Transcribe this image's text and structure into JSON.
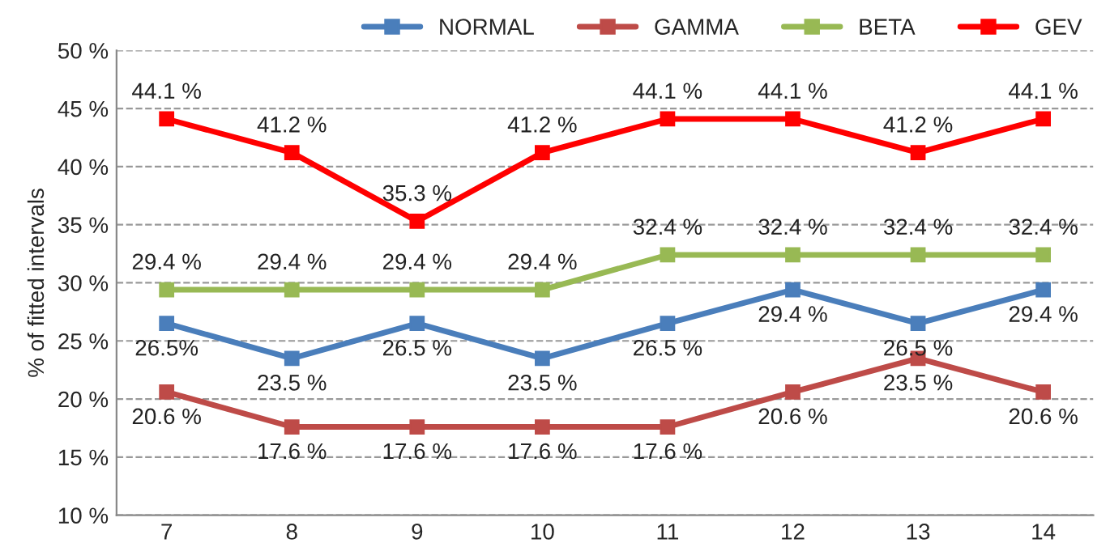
{
  "chart_data": {
    "type": "line",
    "ylabel": "% of fitted intervals",
    "categories": [
      "7",
      "8",
      "9",
      "10",
      "11",
      "12",
      "13",
      "14"
    ],
    "series": [
      {
        "name": "NORMAL",
        "color": "#4a7ebb",
        "values": [
          26.5,
          23.5,
          26.5,
          23.5,
          26.5,
          29.4,
          26.5,
          29.4
        ],
        "value_labels": [
          "26.5%",
          "23.5 %",
          "26.5 %",
          "23.5 %",
          "26.5 %",
          "29.4 %",
          "26.5 %",
          "29.4 %"
        ]
      },
      {
        "name": "GAMMA",
        "color": "#be4b48",
        "values": [
          20.6,
          17.6,
          17.6,
          17.6,
          17.6,
          20.6,
          23.5,
          20.6
        ],
        "value_labels": [
          "20.6 %",
          "17.6 %",
          "17.6 %",
          "17.6 %",
          "17.6 %",
          "20.6 %",
          "23.5 %",
          "20.6 %"
        ]
      },
      {
        "name": "BETA",
        "color": "#98b954",
        "values": [
          29.4,
          29.4,
          29.4,
          29.4,
          32.4,
          32.4,
          32.4,
          32.4
        ],
        "value_labels": [
          "29.4 %",
          "29.4 %",
          "29.4 %",
          "29.4 %",
          "32.4 %",
          "32.4 %",
          "32.4 %",
          "32.4 %"
        ]
      },
      {
        "name": "GEV",
        "color": "#ff0000",
        "values": [
          44.1,
          41.2,
          35.3,
          41.2,
          44.1,
          44.1,
          41.2,
          44.1
        ],
        "value_labels": [
          "44.1 %",
          "41.2 %",
          "35.3 %",
          "41.2 %",
          "44.1 %",
          "44.1 %",
          "41.2 %",
          "44.1 %"
        ]
      }
    ],
    "ylim": [
      10,
      50
    ],
    "yticks": [
      {
        "value": 10,
        "label": "10 %"
      },
      {
        "value": 15,
        "label": "15 %"
      },
      {
        "value": 20,
        "label": "20 %"
      },
      {
        "value": 25,
        "label": "25 %"
      },
      {
        "value": 30,
        "label": "30 %"
      },
      {
        "value": 35,
        "label": "35 %"
      },
      {
        "value": 40,
        "label": "40 %"
      },
      {
        "value": 45,
        "label": "45 %"
      },
      {
        "value": 50,
        "label": "50 %"
      }
    ],
    "grid": "y",
    "legend": "top",
    "marker": "square",
    "line_style": "solid"
  }
}
